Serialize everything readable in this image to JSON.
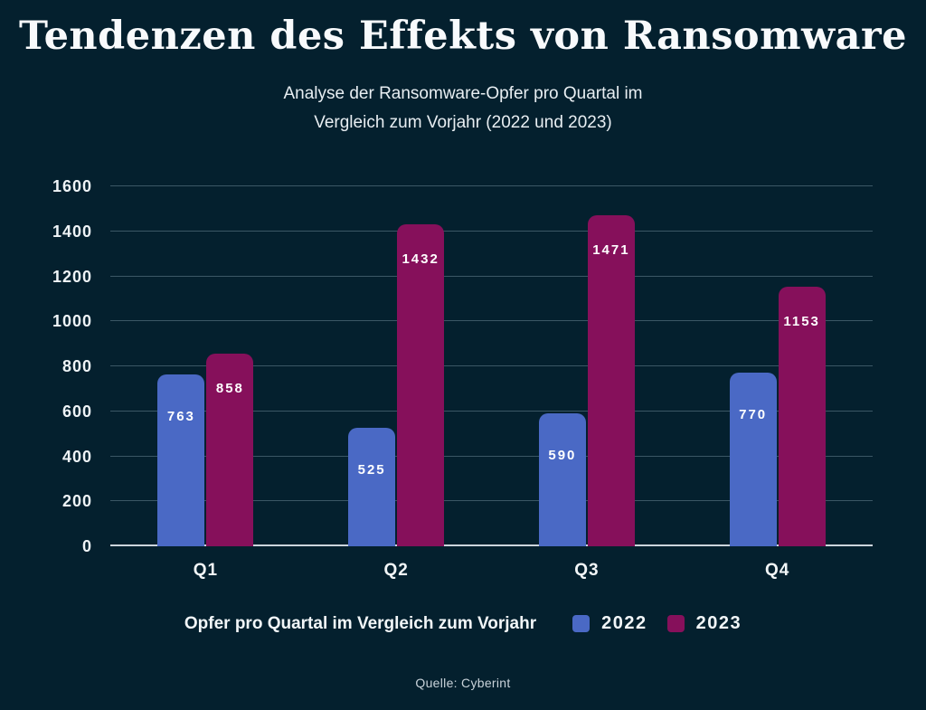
{
  "page": {
    "title": "Tendenzen des Effekts von Ransomware",
    "subtitle_line1": "Analyse der Ransomware-Opfer pro Quartal im",
    "subtitle_line2": "Vergleich zum Vorjahr (2022 und 2023)",
    "source": "Quelle: Cyberint"
  },
  "chart_data": {
    "type": "bar",
    "categories": [
      "Q1",
      "Q2",
      "Q3",
      "Q4"
    ],
    "series": [
      {
        "name": "2022",
        "color": "#4a69c5",
        "values": [
          763,
          525,
          590,
          770
        ]
      },
      {
        "name": "2023",
        "color": "#86105b",
        "values": [
          858,
          1432,
          1471,
          1153
        ]
      }
    ],
    "ylim": [
      0,
      1600
    ],
    "yticks": [
      0,
      200,
      400,
      600,
      800,
      1000,
      1200,
      1400,
      1600
    ],
    "grid": true,
    "value_labels": true,
    "legend_title": "Opfer pro Quartal im Vergleich zum Vorjahr",
    "legend_position": "bottom"
  },
  "colors": {
    "background": "#04202e",
    "gridline": "#3b5765",
    "axis": "#ccd5dc",
    "text": "#f2f6f8",
    "muted_text": "#c9d3da"
  }
}
